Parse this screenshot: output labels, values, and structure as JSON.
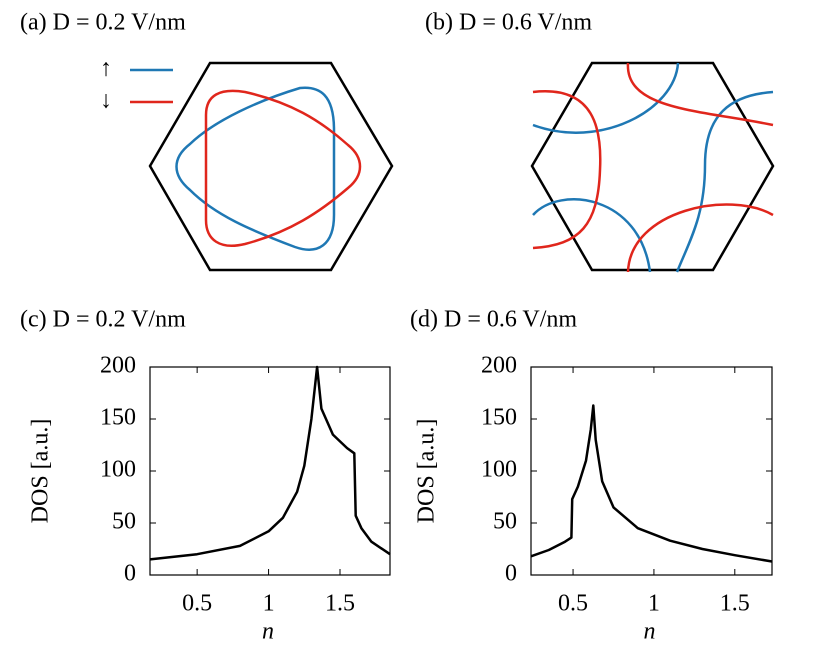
{
  "diagrams": [
    {
      "title": "(a) D = 0.2 V/nm",
      "legend": [
        {
          "label": "↑",
          "color": "#1f78b4"
        },
        {
          "label": "↓",
          "color": "#e0261c"
        }
      ]
    },
    {
      "title": "(b) D = 0.6 V/nm"
    }
  ],
  "chart_data": [
    {
      "type": "line",
      "title": "(c) D = 0.2 V/nm",
      "xlabel": "n",
      "ylabel": "DOS [a.u.]",
      "color": "#000000",
      "x": [
        0.17,
        0.5,
        0.8,
        1.0,
        1.1,
        1.2,
        1.25,
        1.3,
        1.34,
        1.37,
        1.45,
        1.55,
        1.6,
        1.61,
        1.65,
        1.72,
        1.85
      ],
      "values": [
        15,
        20,
        28,
        42,
        55,
        80,
        105,
        150,
        200,
        160,
        135,
        122,
        117,
        57,
        45,
        32,
        20
      ],
      "xlim": [
        0.17,
        1.85
      ],
      "ylim": [
        0,
        200
      ],
      "xticks": [
        0.5,
        1,
        1.5
      ],
      "yticks": [
        0,
        50,
        100,
        150,
        200
      ]
    },
    {
      "type": "line",
      "title": "(d) D = 0.6 V/nm",
      "xlabel": "n",
      "ylabel": "DOS [a.u.]",
      "color": "#000000",
      "x": [
        0.24,
        0.35,
        0.45,
        0.49,
        0.495,
        0.53,
        0.58,
        0.61,
        0.625,
        0.64,
        0.68,
        0.75,
        0.9,
        1.1,
        1.3,
        1.5,
        1.73
      ],
      "values": [
        18,
        24,
        32,
        36,
        73,
        85,
        110,
        140,
        163,
        130,
        90,
        65,
        45,
        33,
        25,
        19,
        13
      ],
      "xlim": [
        0.24,
        1.73
      ],
      "ylim": [
        0,
        200
      ],
      "xticks": [
        0.5,
        1,
        1.5
      ],
      "yticks": [
        0,
        50,
        100,
        150,
        200
      ]
    }
  ]
}
